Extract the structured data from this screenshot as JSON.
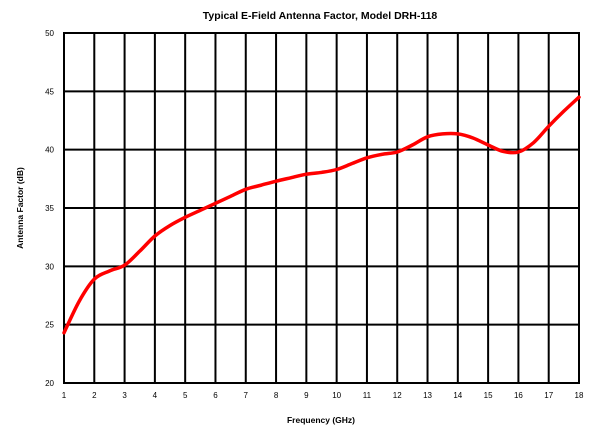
{
  "chart_data": {
    "type": "line",
    "title": "Typical E-Field Antenna Factor, Model DRH-118",
    "xlabel": "Frequency (GHz)",
    "ylabel": "Antenna Factor (dB)",
    "xlim": [
      1,
      18
    ],
    "ylim": [
      20,
      50
    ],
    "x_ticks": [
      1,
      2,
      3,
      4,
      5,
      6,
      7,
      8,
      9,
      10,
      11,
      12,
      13,
      14,
      15,
      16,
      17,
      18
    ],
    "y_ticks": [
      20,
      25,
      30,
      35,
      40,
      45,
      50
    ],
    "grid": true,
    "legend": "none",
    "series": [
      {
        "color": "#ff0000",
        "x": [
          1,
          1.5,
          2,
          2.5,
          3,
          3.5,
          4,
          4.5,
          5,
          5.5,
          6,
          6.5,
          7,
          7.5,
          8,
          8.5,
          9,
          9.5,
          10,
          10.5,
          11,
          11.5,
          12,
          12.5,
          13,
          13.5,
          14,
          14.5,
          15,
          15.5,
          16,
          16.5,
          17,
          17.5,
          18
        ],
        "y": [
          24.3,
          27.0,
          28.9,
          29.6,
          30.1,
          31.3,
          32.6,
          33.5,
          34.2,
          34.8,
          35.4,
          36.0,
          36.6,
          36.95,
          37.3,
          37.6,
          37.9,
          38.05,
          38.3,
          38.8,
          39.3,
          39.6,
          39.8,
          40.4,
          41.1,
          41.35,
          41.35,
          41.0,
          40.4,
          39.85,
          39.8,
          40.6,
          42.0,
          43.3,
          44.5
        ]
      }
    ]
  }
}
